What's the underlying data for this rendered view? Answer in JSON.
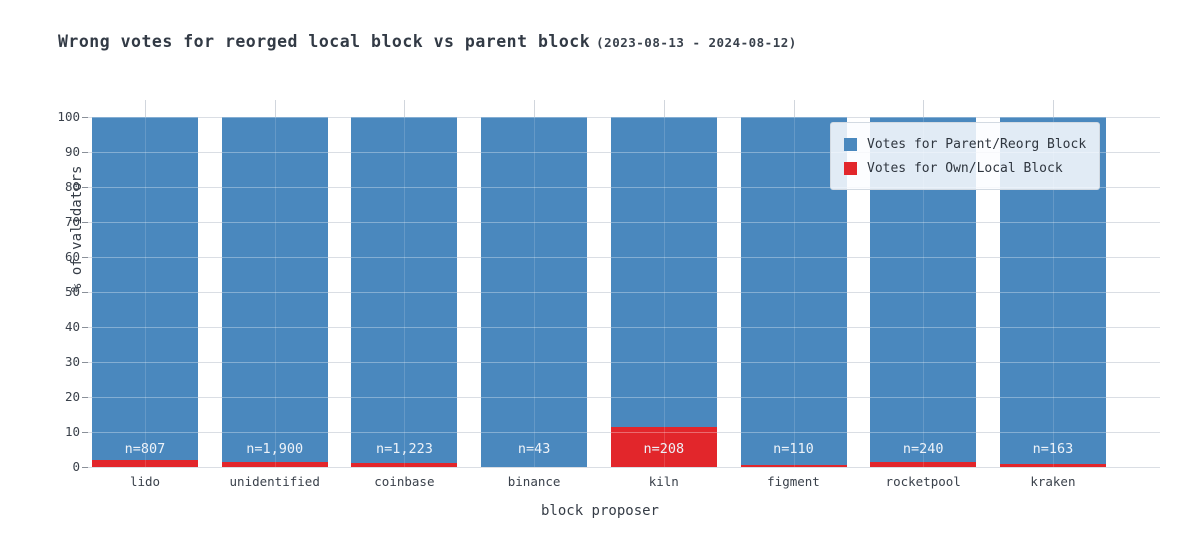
{
  "title": {
    "main": "Wrong votes for reorged local block vs parent block",
    "date_range": "(2023-08-13 - 2024-08-12)"
  },
  "chart_data": {
    "type": "bar",
    "stacked": true,
    "title": "Wrong votes for reorged local block vs parent block (2023-08-13 - 2024-08-12)",
    "xlabel": "block proposer",
    "ylabel": "% of validators",
    "ylim": [
      0,
      105
    ],
    "yticks": [
      0,
      10,
      20,
      30,
      40,
      50,
      60,
      70,
      80,
      90,
      100
    ],
    "grid": true,
    "legend_position": "upper right",
    "categories": [
      "lido",
      "unidentified",
      "coinbase",
      "binance",
      "kiln",
      "figment",
      "rocketpool",
      "kraken"
    ],
    "series": [
      {
        "name": "Votes for Parent/Reorg Block",
        "color": "#4a88be",
        "values": [
          98.0,
          98.7,
          98.9,
          100.0,
          88.6,
          99.4,
          98.6,
          99.1
        ]
      },
      {
        "name": "Votes for Own/Local Block",
        "color": "#e2262b",
        "values": [
          2.0,
          1.3,
          1.1,
          0.0,
          11.4,
          0.6,
          1.4,
          0.9
        ]
      }
    ],
    "annotations": [
      "n=807",
      "n=1,900",
      "n=1,223",
      "n=43",
      "n=208",
      "n=110",
      "n=240",
      "n=163"
    ],
    "colors": {
      "parent_reorg_block": "#4a88be",
      "own_local_block": "#e2262b",
      "gridline": "#c9cfd7",
      "background": "#ffffff",
      "text": "#323a45"
    }
  }
}
